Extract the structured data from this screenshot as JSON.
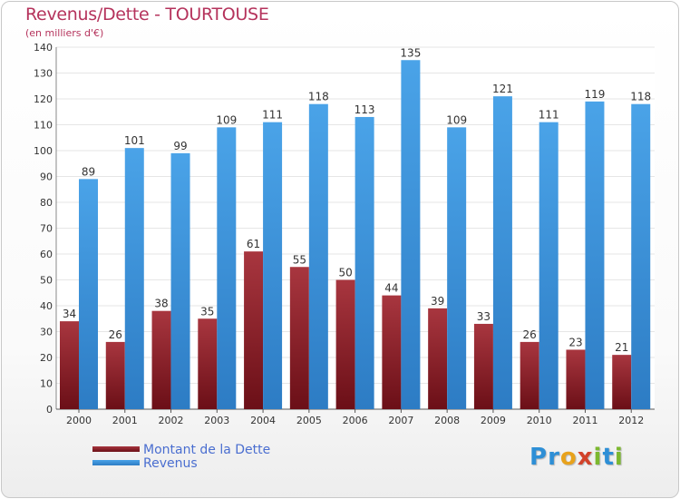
{
  "header": {
    "title": "Revenus/Dette - TOURTOUSE",
    "subtitle": "(en milliers d'€)"
  },
  "colors": {
    "dette": "#6b0f17",
    "dette_light": "#a8363f",
    "revenus": "#4aa3e8",
    "revenus_dark": "#2d7cc4",
    "title": "#b5335c",
    "legend_text": "#4a6ed0",
    "grid": "#e6e6e6",
    "axis_text": "#333333",
    "label_text": "#333333"
  },
  "chart_data": {
    "type": "bar",
    "categories": [
      "2000",
      "2001",
      "2002",
      "2003",
      "2004",
      "2005",
      "2006",
      "2007",
      "2008",
      "2009",
      "2010",
      "2011",
      "2012"
    ],
    "series": [
      {
        "name": "Montant de la Dette",
        "values": [
          34,
          26,
          38,
          35,
          61,
          55,
          50,
          44,
          39,
          33,
          26,
          23,
          21
        ]
      },
      {
        "name": "Revenus",
        "values": [
          89,
          101,
          99,
          109,
          111,
          118,
          113,
          135,
          109,
          121,
          111,
          119,
          118
        ]
      }
    ],
    "ylim": [
      0,
      140
    ],
    "yticks": [
      0,
      10,
      20,
      30,
      40,
      50,
      60,
      70,
      80,
      90,
      100,
      110,
      120,
      130,
      140
    ],
    "grid": true,
    "data_labels": true,
    "legend_position": "bottom-left"
  },
  "logo": {
    "letters": [
      {
        "char": "P",
        "color": "#2e8fd6"
      },
      {
        "char": "r",
        "color": "#2e8fd6"
      },
      {
        "char": "o",
        "color": "#e8a21c"
      },
      {
        "char": "x",
        "color": "#d2422a"
      },
      {
        "char": "i",
        "color": "#7cb82f"
      },
      {
        "char": "t",
        "color": "#2e8fd6"
      },
      {
        "char": "i",
        "color": "#7cb82f"
      }
    ]
  }
}
